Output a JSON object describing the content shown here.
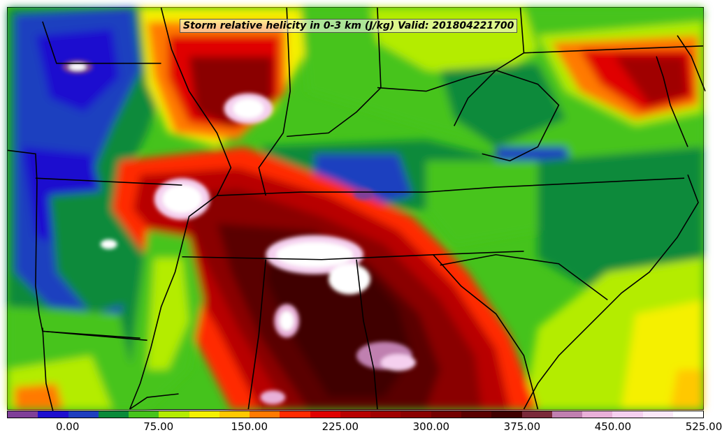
{
  "map": {
    "title": "Storm relative helicity in 0-3 km (J/kg) Valid: 201804221700",
    "legend": {
      "colors": [
        "#7f3f98",
        "#1f0fcf",
        "#1f3fbf",
        "#0a8a3a",
        "#46c41c",
        "#b4ec00",
        "#f5f000",
        "#ffc800",
        "#ff7a00",
        "#ff2a00",
        "#e00000",
        "#b80000",
        "#a00000",
        "#8a0000",
        "#730000",
        "#5a0000",
        "#400000",
        "#7a2a3a",
        "#c080b0",
        "#e8b0d8",
        "#f5d0ef",
        "#fbe8f8",
        "#ffffff"
      ],
      "tick_labels": [
        "0.00",
        "75.00",
        "150.00",
        "225.00",
        "300.00",
        "375.00",
        "450.00",
        "525.00"
      ]
    }
  }
}
